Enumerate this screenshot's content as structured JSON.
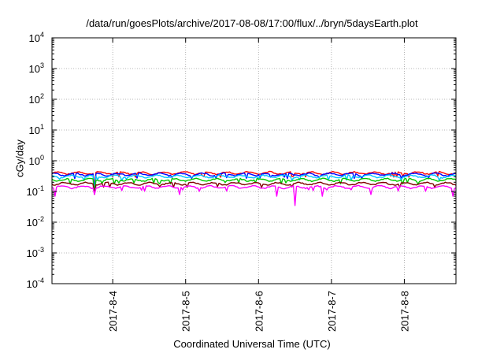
{
  "chart_data": {
    "type": "line",
    "title": "/data/run/goesPlots/archive/2017-08-08/17:00/flux/../bryn/5daysEarth.plot",
    "xlabel": "Coordinated Universal Time (UTC)",
    "ylabel": "cGy/day",
    "yscale": "log",
    "ylim": [
      0.0001,
      10000
    ],
    "y_ticks": [
      {
        "value": 0.0001,
        "base": "10",
        "exp": "-4"
      },
      {
        "value": 0.001,
        "base": "10",
        "exp": "-3"
      },
      {
        "value": 0.01,
        "base": "10",
        "exp": "-2"
      },
      {
        "value": 0.1,
        "base": "10",
        "exp": "-1"
      },
      {
        "value": 1,
        "base": "10",
        "exp": "0"
      },
      {
        "value": 10,
        "base": "10",
        "exp": "1"
      },
      {
        "value": 100,
        "base": "10",
        "exp": "2"
      },
      {
        "value": 1000,
        "base": "10",
        "exp": "3"
      },
      {
        "value": 10000,
        "base": "10",
        "exp": "4"
      }
    ],
    "xlim": [
      "2017-08-03T04:00",
      "2017-08-08T17:00"
    ],
    "x_ticks": [
      "2017-8-4",
      "2017-8-5",
      "2017-8-6",
      "2017-8-7",
      "2017-8-8"
    ],
    "x_tick_dates": [
      "2017-08-04T00:00",
      "2017-08-05T00:00",
      "2017-08-06T00:00",
      "2017-08-07T00:00",
      "2017-08-08T00:00"
    ],
    "grid": true,
    "series": [
      {
        "color": "#ff0000",
        "level": 0.4,
        "dips": [
          {
            "date": "2017-08-03T18:00",
            "value": 0.15
          }
        ]
      },
      {
        "color": "#0000ff",
        "level": 0.36,
        "dips": [
          {
            "date": "2017-08-03T18:00",
            "value": 0.12
          }
        ]
      },
      {
        "color": "#00c8ff",
        "level": 0.31,
        "dips": [
          {
            "date": "2017-08-03T18:00",
            "value": 0.1
          }
        ]
      },
      {
        "color": "#00c800",
        "level": 0.24,
        "dips": [
          {
            "date": "2017-08-03T18:00",
            "value": 0.09
          }
        ]
      },
      {
        "color": "#800000",
        "level": 0.18,
        "dips": [
          {
            "date": "2017-08-03T18:00",
            "value": 0.08
          }
        ]
      },
      {
        "color": "#ff00ff",
        "level": 0.14,
        "dips": [
          {
            "date": "2017-08-03T05:00",
            "value": 0.07
          },
          {
            "date": "2017-08-03T18:00",
            "value": 0.08
          },
          {
            "date": "2017-08-04T22:00",
            "value": 0.08
          },
          {
            "date": "2017-08-06T06:00",
            "value": 0.07
          },
          {
            "date": "2017-08-06T12:00",
            "value": 0.035
          },
          {
            "date": "2017-08-06T21:00",
            "value": 0.07
          },
          {
            "date": "2017-08-07T13:00",
            "value": 0.08
          },
          {
            "date": "2017-08-08T16:00",
            "value": 0.07
          }
        ]
      }
    ]
  }
}
